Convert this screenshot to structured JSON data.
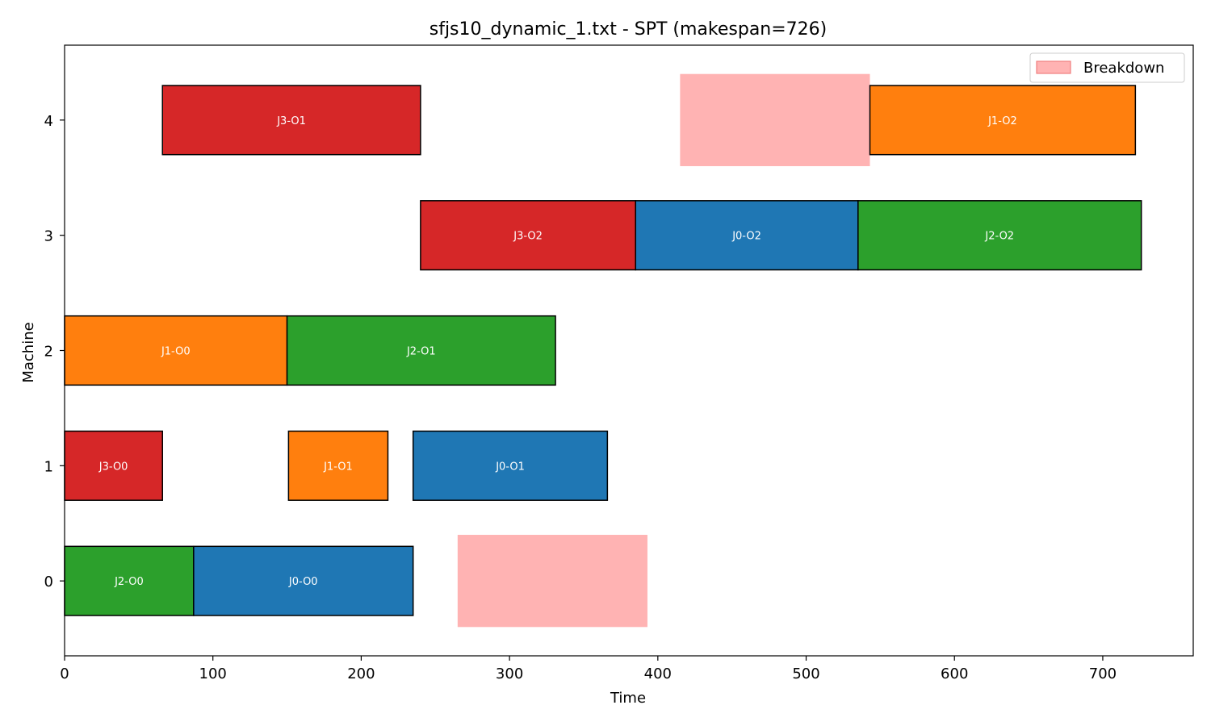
{
  "chart_data": {
    "type": "gantt",
    "title": "sfjs10_dynamic_1.txt - SPT (makespan=726)",
    "xlabel": "Time",
    "ylabel": "Machine",
    "xlim": [
      0,
      761
    ],
    "ylim": [
      -0.65,
      4.65
    ],
    "xticks": [
      0,
      100,
      200,
      300,
      400,
      500,
      600,
      700
    ],
    "yticks": [
      0,
      1,
      2,
      3,
      4
    ],
    "colors": {
      "J0": "#1f77b4",
      "J1": "#ff7f0e",
      "J2": "#2ca02c",
      "J3": "#d62728",
      "breakdown": "#ffb3b3",
      "breakdown_edge": "#f08080"
    },
    "operations": [
      {
        "machine": 0,
        "job": "J2",
        "label": "J2-O0",
        "start": 0,
        "end": 87
      },
      {
        "machine": 0,
        "job": "J0",
        "label": "J0-O0",
        "start": 87,
        "end": 235
      },
      {
        "machine": 1,
        "job": "J3",
        "label": "J3-O0",
        "start": 0,
        "end": 66
      },
      {
        "machine": 1,
        "job": "J1",
        "label": "J1-O1",
        "start": 151,
        "end": 218
      },
      {
        "machine": 1,
        "job": "J0",
        "label": "J0-O1",
        "start": 235,
        "end": 366
      },
      {
        "machine": 2,
        "job": "J1",
        "label": "J1-O0",
        "start": 0,
        "end": 150
      },
      {
        "machine": 2,
        "job": "J2",
        "label": "J2-O1",
        "start": 150,
        "end": 331
      },
      {
        "machine": 3,
        "job": "J3",
        "label": "J3-O2",
        "start": 240,
        "end": 385
      },
      {
        "machine": 3,
        "job": "J0",
        "label": "J0-O2",
        "start": 385,
        "end": 535
      },
      {
        "machine": 3,
        "job": "J2",
        "label": "J2-O2",
        "start": 535,
        "end": 726
      },
      {
        "machine": 4,
        "job": "J3",
        "label": "J3-O1",
        "start": 66,
        "end": 240
      },
      {
        "machine": 4,
        "job": "J1",
        "label": "J1-O2",
        "start": 543,
        "end": 722
      }
    ],
    "breakdowns": [
      {
        "machine": 0,
        "start": 265,
        "end": 393
      },
      {
        "machine": 4,
        "start": 415,
        "end": 543
      }
    ],
    "legend": {
      "label": "Breakdown",
      "location": "upper right"
    }
  }
}
